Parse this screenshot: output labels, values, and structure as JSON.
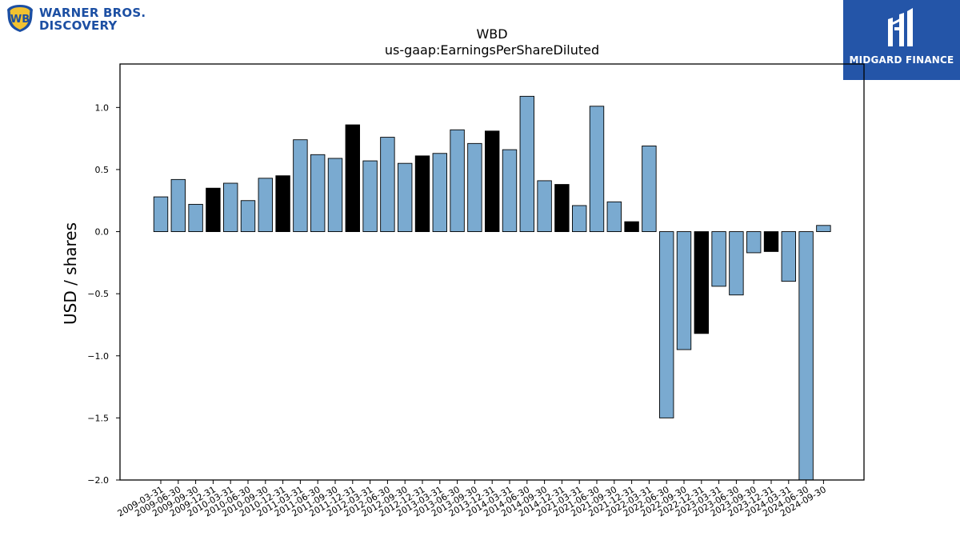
{
  "logos": {
    "left_text_line1": "WARNER BROS.",
    "left_text_line2": "DISCOVERY",
    "right_text": "MIDGARD FINANCE"
  },
  "chart_data": {
    "type": "bar",
    "title": "WBD",
    "subtitle": "us-gaap:EarningsPerShareDiluted",
    "xlabel": "",
    "ylabel": "USD / shares",
    "ylim": [
      -2.0,
      1.35
    ],
    "yticks": [
      1.0,
      0.5,
      0.0,
      -0.5,
      -1.0,
      -1.5,
      -2.0
    ],
    "ytick_labels": [
      "1.0",
      "0.5",
      "0.0",
      "−0.5",
      "−1.0",
      "−1.5",
      "−2.0"
    ],
    "grid": false,
    "colors": {
      "default": "#7aaad0",
      "highlight": "#000000",
      "edge": "#000000"
    },
    "categories": [
      "2009-03-31",
      "2009-06-30",
      "2009-09-30",
      "2009-12-31",
      "2010-03-31",
      "2010-06-30",
      "2010-09-30",
      "2010-12-31",
      "2011-03-31",
      "2011-06-30",
      "2011-09-30",
      "2011-12-31",
      "2012-03-31",
      "2012-06-30",
      "2012-09-30",
      "2012-12-31",
      "2013-03-31",
      "2013-06-30",
      "2013-09-30",
      "2013-12-31",
      "2014-03-31",
      "2014-06-30",
      "2014-09-30",
      "2014-12-31",
      "2021-03-31",
      "2021-06-30",
      "2021-09-30",
      "2021-12-31",
      "2022-03-31",
      "2022-06-30",
      "2022-09-30",
      "2022-12-31",
      "2023-03-31",
      "2023-06-30",
      "2023-09-30",
      "2023-12-31",
      "2024-03-31",
      "2024-06-30",
      "2024-09-30"
    ],
    "values": [
      0.28,
      0.42,
      0.22,
      0.35,
      0.39,
      0.25,
      0.43,
      0.45,
      0.74,
      0.62,
      0.59,
      0.86,
      0.57,
      0.76,
      0.55,
      0.61,
      0.63,
      0.82,
      0.71,
      0.81,
      0.66,
      1.09,
      0.41,
      0.38,
      0.21,
      1.01,
      0.24,
      0.08,
      0.69,
      -1.5,
      -0.95,
      -0.82,
      -0.44,
      -0.51,
      -0.17,
      -0.16,
      -0.4,
      -2.0,
      0.05
    ],
    "highlighted": [
      false,
      false,
      false,
      true,
      false,
      false,
      false,
      true,
      false,
      false,
      false,
      true,
      false,
      false,
      false,
      true,
      false,
      false,
      false,
      true,
      false,
      false,
      false,
      true,
      false,
      false,
      false,
      true,
      false,
      false,
      false,
      true,
      false,
      false,
      false,
      true,
      false,
      false,
      false
    ]
  }
}
